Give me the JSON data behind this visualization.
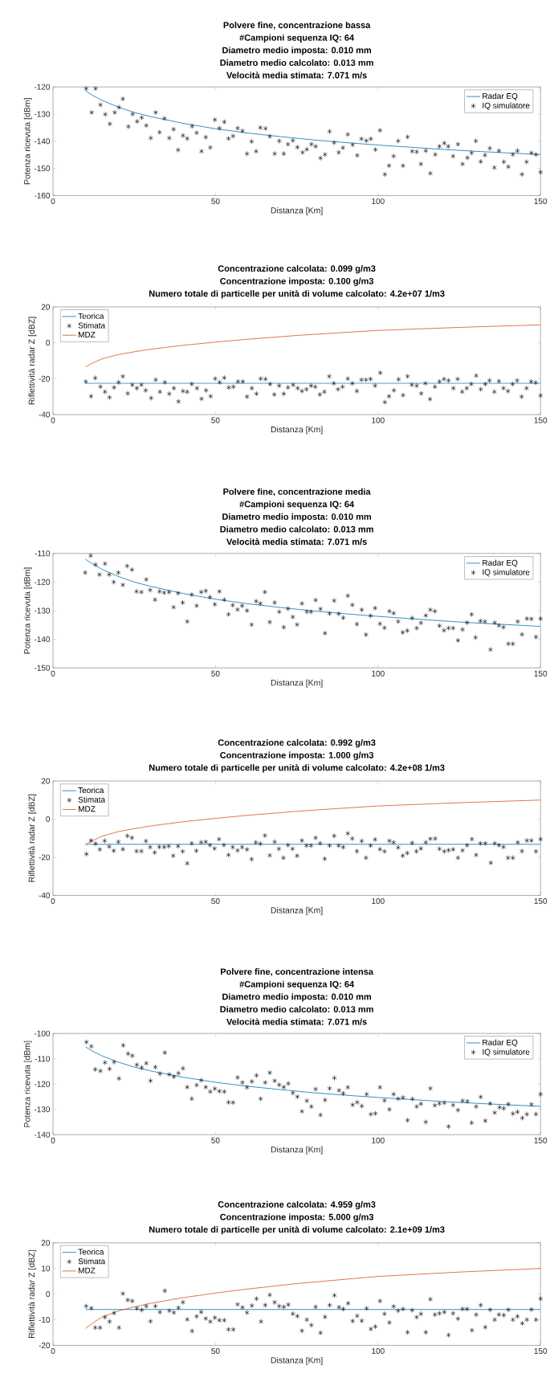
{
  "chart_data": [
    {
      "type": "line",
      "title": [
        "Polvere fine, concentrazione bassa",
        "#Campioni sequenza IQ: 64",
        "Diametro medio imposta: 0.010 mm",
        "Diametro medio calcolato: 0.013 mm",
        "Velocità media stimata: 7.071 m/s"
      ],
      "xlabel": "Distanza [Km]",
      "ylabel": "Potenza ricevuta [dBm]",
      "xlim": [
        0,
        150
      ],
      "xticks": [
        0,
        50,
        100,
        150
      ],
      "ylim": [
        -160,
        -120
      ],
      "yticks": [
        -160,
        -150,
        -140,
        -130,
        -120
      ],
      "legend": "top right",
      "series": [
        {
          "name": "Radar EQ",
          "color": "#0072bd",
          "x": [
            10,
            12,
            15,
            20,
            25,
            30,
            40,
            50,
            60,
            70,
            80,
            90,
            100,
            110,
            120,
            130,
            140,
            150
          ],
          "values": [
            -121.4,
            -123.0,
            -124.9,
            -127.4,
            -129.4,
            -130.9,
            -133.4,
            -135.4,
            -137.0,
            -138.3,
            -139.5,
            -140.5,
            -141.4,
            -142.2,
            -143.0,
            -143.7,
            -144.3,
            -144.9
          ]
        },
        {
          "name": "IQ simulatore",
          "type": "scatter",
          "marker": "cross",
          "color": "#000000",
          "x": [
            10.2,
            11.9,
            13.1,
            14.6,
            16.1,
            17.5,
            19,
            20.3,
            21.5,
            23.2,
            24.5,
            25.9,
            27.3,
            28.7,
            30.1,
            31.6,
            32.8,
            34.3,
            35.8,
            37.1,
            38.5,
            40,
            41.3,
            42.8,
            44.2,
            45.7,
            47,
            48.4,
            49.8,
            51.2,
            52.7,
            54,
            55.4,
            56.8,
            58.3,
            59.7,
            61.1,
            62.5,
            63.8,
            65.4,
            66.7,
            68.2,
            69.6,
            71,
            72.3,
            73.8,
            75.2,
            76.8,
            78.1,
            79.5,
            80.8,
            82.3,
            83.7,
            85.1,
            86.5,
            87.9,
            89.2,
            90.7,
            92.2,
            93.6,
            94.9,
            96.4,
            97.8,
            99.2,
            100.6,
            102.1,
            103.4,
            104.8,
            106.2,
            107.7,
            109.1,
            110.5,
            111.9,
            113.2,
            114.7,
            116.1,
            117.6,
            118.9,
            120.4,
            121.6,
            123.1,
            124.6,
            126,
            127.5,
            128.8,
            130.1,
            131.6,
            132.9,
            134.4,
            135.8,
            137.2,
            138.7,
            140.1,
            141.5,
            142.9,
            144.3,
            145.7,
            147.2,
            148.6,
            150
          ],
          "values": [
            -120.6,
            -129.4,
            -120.6,
            -126.6,
            -130.1,
            -133.6,
            -129.4,
            -127.5,
            -124.4,
            -134.6,
            -130,
            -132.7,
            -131.3,
            -134.2,
            -138.8,
            -129.4,
            -136.7,
            -131.6,
            -138.8,
            -135.6,
            -143.2,
            -137.9,
            -139,
            -134.5,
            -136.9,
            -143.7,
            -138.5,
            -142.3,
            -132.1,
            -135.2,
            -132.9,
            -139,
            -138.1,
            -135.2,
            -136.2,
            -144.6,
            -140.1,
            -143.7,
            -135,
            -135.3,
            -138.2,
            -144.6,
            -139.9,
            -144.6,
            -141.1,
            -139.7,
            -142.2,
            -144.1,
            -143,
            -141.1,
            -141.9,
            -146.2,
            -144.9,
            -136.4,
            -140.5,
            -144.1,
            -142.4,
            -137.5,
            -141.3,
            -145.2,
            -139.1,
            -139.8,
            -139.1,
            -143.1,
            -136,
            -152.2,
            -149,
            -145.5,
            -139.9,
            -149,
            -138.4,
            -143.7,
            -143.9,
            -148.4,
            -143.5,
            -151.8,
            -144.9,
            -141.9,
            -140.7,
            -141.9,
            -145.5,
            -141.1,
            -148.4,
            -146.1,
            -144.3,
            -139.9,
            -147.5,
            -145.1,
            -142.6,
            -149.7,
            -143.5,
            -147.6,
            -149.4,
            -144.9,
            -143.5,
            -152.2,
            -147.6,
            -144.3,
            -144.9,
            -151.4
          ]
        }
      ]
    },
    {
      "type": "line",
      "title": [
        "Concentrazione calcolata: 0.099 g/m3",
        "Concentrazione imposta: 0.100 g/m3",
        "Numero totale di particelle per unità di volume calcolato: 4.2e+07 1/m3"
      ],
      "xlabel": "Distanza [Km]",
      "ylabel": "Riflettività radar Z [dBZ]",
      "xlim": [
        0,
        150
      ],
      "xticks": [
        0,
        50,
        100,
        150
      ],
      "ylim": [
        -40,
        20
      ],
      "yticks": [
        -40,
        -20,
        0,
        20
      ],
      "legend": "top left",
      "series": [
        {
          "name": "Teorica",
          "color": "#0072bd",
          "x": [
            10,
            150
          ],
          "values": [
            -22.6,
            -22.6
          ]
        },
        {
          "name": "Stimata",
          "type": "scatter",
          "marker": "cross",
          "color": "#000000",
          "x": [
            10.1,
            11.7,
            13,
            14.6,
            16,
            17.4,
            18.8,
            20.2,
            21.5,
            23,
            24.4,
            25.8,
            27.2,
            28.5,
            30.2,
            31.6,
            32.9,
            34.4,
            35.8,
            37.2,
            38.6,
            40,
            41.3,
            42.7,
            44.3,
            45.7,
            47.1,
            48.5,
            49.9,
            51.3,
            52.7,
            54.1,
            55.5,
            56.9,
            58.4,
            59.7,
            61.2,
            62.6,
            63.9,
            65.4,
            66.8,
            68.1,
            69.6,
            71,
            72.3,
            73.9,
            75.3,
            76.6,
            78,
            79.4,
            80.7,
            82.1,
            83.5,
            85,
            86.4,
            87.7,
            89.1,
            90.7,
            92.1,
            93.5,
            94.9,
            96.3,
            97.7,
            99.1,
            100.7,
            102.1,
            103.4,
            104.9,
            106.3,
            107.7,
            109.1,
            110.4,
            111.9,
            113.3,
            114.6,
            116,
            117.5,
            118.9,
            120.3,
            121.7,
            123.2,
            124.5,
            125.9,
            127.3,
            128.7,
            130.2,
            131.6,
            133,
            134.3,
            135.8,
            137.2,
            138.6,
            140,
            141.4,
            142.8,
            144.2,
            145.7,
            147.1,
            148.5,
            150
          ],
          "values": [
            -21.6,
            -29.8,
            -19.6,
            -24.5,
            -27.3,
            -30.4,
            -24.9,
            -22,
            -18.7,
            -28.2,
            -23.4,
            -25.3,
            -23.4,
            -26.5,
            -30.8,
            -20.6,
            -27.3,
            -22,
            -28.4,
            -25.3,
            -32.7,
            -26.9,
            -27.3,
            -23,
            -25.3,
            -31.2,
            -26.5,
            -29.8,
            -20,
            -22,
            -19.5,
            -24.9,
            -24.5,
            -21.6,
            -21.6,
            -30,
            -25.3,
            -28.4,
            -20,
            -20.2,
            -23,
            -28.8,
            -23.9,
            -28.4,
            -24.9,
            -23.4,
            -25.3,
            -26.9,
            -25.9,
            -23.9,
            -24.5,
            -28.8,
            -27.3,
            -18.7,
            -22.6,
            -25.9,
            -24.5,
            -20,
            -22.6,
            -26.9,
            -20.6,
            -20.6,
            -20.2,
            -23.9,
            -16.7,
            -33.1,
            -29.8,
            -26.5,
            -20.4,
            -29.2,
            -18.7,
            -23.4,
            -23.9,
            -28.2,
            -22.6,
            -31.4,
            -24.5,
            -21.6,
            -20.2,
            -21,
            -25.3,
            -20.2,
            -27.3,
            -25.3,
            -23,
            -18.3,
            -25.9,
            -23,
            -21,
            -27.3,
            -21.4,
            -25.3,
            -26.9,
            -23,
            -21,
            -30,
            -25.3,
            -21.6,
            -22.2,
            -29.4
          ]
        },
        {
          "name": "MDZ",
          "color": "#d95319",
          "x": [
            10,
            12,
            15,
            20,
            25,
            30,
            40,
            50,
            60,
            75,
            90,
            100,
            125,
            150
          ],
          "values": [
            -13.4,
            -11.5,
            -9.0,
            -6.6,
            -5.0,
            -3.6,
            -1.4,
            0.4,
            2.0,
            4.1,
            5.8,
            6.9,
            8.6,
            10.0
          ]
        }
      ]
    },
    {
      "type": "line",
      "title": [
        "Polvere fine, concentrazione media",
        "#Campioni sequenza IQ: 64",
        "Diametro medio imposta: 0.010 mm",
        "Diametro medio calcolato: 0.013 mm",
        "Velocità media stimata: 7.071 m/s"
      ],
      "xlabel": "Distanza [Km]",
      "ylabel": "Potenza ricevuta [dBm]",
      "xlim": [
        0,
        150
      ],
      "xticks": [
        0,
        50,
        100,
        150
      ],
      "ylim": [
        -150,
        -110
      ],
      "yticks": [
        -150,
        -140,
        -130,
        -120,
        -110
      ],
      "legend": "top right",
      "series": [
        {
          "name": "Radar EQ",
          "color": "#0072bd",
          "x": [
            10,
            12,
            15,
            20,
            25,
            30,
            40,
            50,
            60,
            70,
            80,
            90,
            100,
            110,
            120,
            130,
            140,
            150
          ],
          "values": [
            -112.0,
            -113.6,
            -115.5,
            -118.0,
            -120.0,
            -121.5,
            -124.0,
            -126.0,
            -127.6,
            -128.9,
            -130.1,
            -131.1,
            -132.0,
            -132.8,
            -133.6,
            -134.3,
            -134.9,
            -135.5
          ]
        },
        {
          "name": "IQ simulatore",
          "type": "scatter",
          "marker": "cross",
          "color": "#000000",
          "x": [
            9.9,
            11.6,
            13.1,
            14.3,
            16,
            17.3,
            18.7,
            20.1,
            21.5,
            22.8,
            24.3,
            25.7,
            27.2,
            28.7,
            29.9,
            31.4,
            32.8,
            34.2,
            35.7,
            37.1,
            38.5,
            39.9,
            41.3,
            42.7,
            44.2,
            45.6,
            47,
            48.3,
            49.8,
            51.2,
            52.7,
            54,
            55.3,
            56.8,
            58.2,
            59.7,
            61.1,
            62.5,
            63.8,
            65.2,
            66.7,
            68.2,
            69.6,
            71,
            72.3,
            73.8,
            75.1,
            76.6,
            78.1,
            79.4,
            80.8,
            82.3,
            83.7,
            85.1,
            86.5,
            87.9,
            89.3,
            90.7,
            92.1,
            93.5,
            95,
            96.3,
            97.7,
            99.1,
            100.6,
            102,
            103.5,
            104.8,
            106.2,
            107.6,
            109,
            110.5,
            111.9,
            113.2,
            114.7,
            116.1,
            117.5,
            118.9,
            120.3,
            121.7,
            123.1,
            124.6,
            126,
            127.4,
            128.8,
            130,
            131.5,
            132.9,
            134.6,
            135.9,
            137.2,
            138.6,
            140.1,
            141.5,
            143,
            144.3,
            145.8,
            147.2,
            148.6,
            150
          ],
          "values": [
            -116.7,
            -110.8,
            -113.9,
            -117.4,
            -113.6,
            -117.4,
            -120,
            -116.7,
            -121,
            -114.4,
            -115.7,
            -123.3,
            -123.5,
            -119.1,
            -122.8,
            -126.2,
            -123.3,
            -123.7,
            -123.5,
            -128.8,
            -123.9,
            -127.2,
            -133.8,
            -124.4,
            -128.3,
            -123.5,
            -123.1,
            -125.3,
            -127.8,
            -123.3,
            -126.2,
            -131.3,
            -128.1,
            -129.6,
            -128.3,
            -130,
            -134.9,
            -126.7,
            -127.5,
            -123.5,
            -134,
            -127.2,
            -130.4,
            -135.8,
            -129.3,
            -132.2,
            -134.9,
            -127.5,
            -130.4,
            -130.4,
            -126.3,
            -129.4,
            -137.9,
            -131,
            -126.5,
            -131.1,
            -132.5,
            -124.8,
            -128,
            -134.7,
            -129.7,
            -138.4,
            -131.8,
            -129.1,
            -134.6,
            -136,
            -130.2,
            -130.9,
            -133.8,
            -137.6,
            -137,
            -132.6,
            -136.1,
            -134.3,
            -131.7,
            -129.7,
            -130.2,
            -135.3,
            -136.9,
            -136.1,
            -136.1,
            -140.4,
            -136.6,
            -134.2,
            -131.3,
            -139.4,
            -133.6,
            -133.8,
            -143.6,
            -134.2,
            -135.2,
            -135.8,
            -141.6,
            -141.6,
            -133.8,
            -138.3,
            -132.8,
            -132.9,
            -139.2,
            -132.8
          ]
        }
      ]
    },
    {
      "type": "line",
      "title": [
        "Concentrazione calcolata: 0.992 g/m3",
        "Concentrazione imposta: 1.000 g/m3",
        "Numero totale di particelle per unità di volume calcolato: 4.2e+08 1/m3"
      ],
      "xlabel": "Distanza [Km]",
      "ylabel": "Riflettività radar Z [dBZ]",
      "xlim": [
        0,
        150
      ],
      "xticks": [
        0,
        50,
        100,
        150
      ],
      "ylim": [
        -40,
        20
      ],
      "yticks": [
        -40,
        -20,
        0,
        20
      ],
      "legend": "top left",
      "series": [
        {
          "name": "Teorica",
          "color": "#0072bd",
          "x": [
            10,
            150
          ],
          "values": [
            -13.2,
            -13.2
          ]
        },
        {
          "name": "Stimata",
          "type": "scatter",
          "marker": "cross",
          "color": "#000000",
          "x": [
            10.3,
            11.7,
            13.1,
            14.4,
            15.9,
            17.3,
            18.7,
            20.1,
            21.5,
            22.9,
            24.3,
            25.7,
            27.2,
            28.6,
            29.9,
            31.3,
            32.7,
            34.2,
            35.6,
            37,
            38.5,
            39.9,
            41.3,
            42.7,
            44.1,
            45.6,
            47,
            48.3,
            49.7,
            51.1,
            52.6,
            54,
            55.3,
            56.8,
            58.2,
            59.7,
            61.1,
            62.4,
            63.8,
            65.2,
            66.7,
            68.2,
            69.5,
            70.9,
            72.3,
            73.7,
            75.1,
            76.6,
            78,
            79.4,
            80.8,
            82.2,
            83.6,
            85.1,
            86.5,
            87.9,
            89.3,
            90.7,
            92.1,
            93.5,
            95,
            96.3,
            97.7,
            99.1,
            100.6,
            102,
            103.5,
            104.8,
            106.2,
            107.6,
            109,
            110.5,
            111.8,
            113.2,
            114.7,
            116.1,
            117.6,
            118.9,
            120.4,
            121.7,
            123.1,
            124.6,
            126,
            127.4,
            128.9,
            130.2,
            131.5,
            133,
            134.7,
            135.9,
            137.2,
            138.6,
            140,
            141.5,
            143,
            144.3,
            145.8,
            147.2,
            148.6,
            150
          ],
          "values": [
            -18.3,
            -11.2,
            -12.9,
            -15.9,
            -11.4,
            -14.4,
            -16.6,
            -11.9,
            -15.8,
            -8.8,
            -9.8,
            -16.8,
            -16.8,
            -11.5,
            -14.7,
            -17.5,
            -14.6,
            -14.6,
            -14.2,
            -19.2,
            -14.2,
            -16.9,
            -23.2,
            -12.7,
            -16.6,
            -12.2,
            -11.9,
            -13.6,
            -15.4,
            -10.5,
            -13.6,
            -18.8,
            -14.7,
            -16.4,
            -14.7,
            -15.9,
            -21,
            -12.2,
            -12.9,
            -8.6,
            -19,
            -11.9,
            -15.6,
            -20.3,
            -13.6,
            -15.6,
            -19.2,
            -11.2,
            -13.9,
            -13.9,
            -9.8,
            -12.7,
            -20.8,
            -13.9,
            -8.8,
            -13.9,
            -14.7,
            -7.5,
            -10.2,
            -16.8,
            -11.5,
            -20.3,
            -13.9,
            -10.7,
            -15.8,
            -16.9,
            -11.4,
            -12.2,
            -14.9,
            -19.2,
            -17.8,
            -12.5,
            -16.9,
            -15.4,
            -12.2,
            -10.3,
            -10.2,
            -15.6,
            -16.9,
            -16.3,
            -15.9,
            -20.3,
            -16.4,
            -13.7,
            -10.5,
            -18.8,
            -12.7,
            -12.7,
            -22.9,
            -12.7,
            -13.7,
            -14.6,
            -20.3,
            -20.3,
            -12.2,
            -16.8,
            -11.2,
            -11.2,
            -16.9,
            -10.5
          ]
        },
        {
          "name": "MDZ",
          "color": "#d95319",
          "x": [
            10,
            12,
            15,
            20,
            25,
            30,
            40,
            50,
            60,
            75,
            90,
            100,
            125,
            150
          ],
          "values": [
            -13.4,
            -11.5,
            -9.0,
            -6.6,
            -5.0,
            -3.6,
            -1.4,
            0.4,
            2.0,
            4.1,
            5.8,
            6.9,
            8.6,
            10.0
          ]
        }
      ]
    },
    {
      "type": "line",
      "title": [
        "Polvere fine, concentrazione intensa",
        "#Campioni sequenza IQ: 64",
        "Diametro medio imposta: 0.010 mm",
        "Diametro medio calcolato: 0.013 mm",
        "Velocità media stimata: 7.071 m/s"
      ],
      "xlabel": "Distanza [Km]",
      "ylabel": "Potenza ricevuta [dBm]",
      "xlim": [
        0,
        150
      ],
      "xticks": [
        0,
        50,
        100,
        150
      ],
      "ylim": [
        -140,
        -100
      ],
      "yticks": [
        -140,
        -130,
        -120,
        -110,
        -100
      ],
      "legend": "top right",
      "series": [
        {
          "name": "Radar EQ",
          "color": "#0072bd",
          "x": [
            10,
            12,
            15,
            20,
            25,
            30,
            40,
            50,
            60,
            70,
            80,
            90,
            100,
            110,
            120,
            130,
            140,
            150
          ],
          "values": [
            -105.3,
            -106.9,
            -108.8,
            -111.3,
            -113.3,
            -114.8,
            -117.3,
            -119.3,
            -120.9,
            -122.2,
            -123.4,
            -124.4,
            -125.3,
            -126.1,
            -126.9,
            -127.6,
            -128.2,
            -128.8
          ]
        },
        {
          "name": "IQ simulatore",
          "type": "scatter",
          "marker": "cross",
          "color": "#000000",
          "x": [
            10.3,
            11.8,
            13,
            14.6,
            16,
            17.4,
            18.8,
            20.3,
            21.6,
            23.1,
            24.4,
            25.8,
            27.3,
            28.7,
            30,
            31.5,
            32.9,
            34.4,
            35.8,
            37.2,
            38.6,
            40,
            41.3,
            42.7,
            44.2,
            45.6,
            47,
            48.4,
            49.8,
            51.2,
            52.7,
            54,
            55.4,
            56.8,
            58.3,
            59.7,
            61.2,
            62.6,
            63.9,
            65.3,
            66.7,
            68.2,
            69.6,
            71,
            72.4,
            73.8,
            75.2,
            76.6,
            78.1,
            79.5,
            80.8,
            82.3,
            83.7,
            85.1,
            86.6,
            88,
            89.3,
            90.7,
            92.2,
            93.6,
            95,
            96.5,
            97.8,
            99.2,
            100.6,
            102,
            103.5,
            104.8,
            106.2,
            107.7,
            109.1,
            110.6,
            111.9,
            113.2,
            114.7,
            116.1,
            117.5,
            118.9,
            120.4,
            121.7,
            123.1,
            124.6,
            126,
            127.5,
            128.8,
            130.2,
            131.6,
            133,
            134.5,
            135.9,
            137.4,
            138.7,
            140.1,
            141.5,
            142.9,
            144.4,
            145.8,
            147.2,
            148.6,
            150
          ],
          "values": [
            -103.4,
            -105.1,
            -114.2,
            -114.8,
            -111.5,
            -114,
            -111.3,
            -117.8,
            -104.7,
            -108,
            -108.8,
            -112.4,
            -113.5,
            -111.8,
            -118.7,
            -113.3,
            -115.9,
            -107.6,
            -116.2,
            -117.1,
            -115.7,
            -113.8,
            -121.2,
            -125.8,
            -120.4,
            -118.5,
            -121.2,
            -123,
            -121.8,
            -122.8,
            -123,
            -127.2,
            -127.3,
            -117.4,
            -119.4,
            -121.3,
            -119,
            -116.6,
            -125.8,
            -119.4,
            -115.5,
            -118.7,
            -120.3,
            -121.2,
            -119.8,
            -123.5,
            -125,
            -130.8,
            -126.6,
            -128.9,
            -122,
            -132.2,
            -126.3,
            -121.7,
            -117.6,
            -122.5,
            -123.7,
            -121.3,
            -128.2,
            -127.2,
            -128.7,
            -124,
            -131.9,
            -131.6,
            -121.3,
            -126.5,
            -130,
            -124,
            -125.8,
            -125.3,
            -134.3,
            -125.9,
            -128.9,
            -127.8,
            -135,
            -121.7,
            -128.4,
            -127.7,
            -127.4,
            -136.8,
            -128.3,
            -130.3,
            -126.6,
            -126.8,
            -135.3,
            -128.9,
            -125.1,
            -134.5,
            -127.7,
            -131.3,
            -129.2,
            -129.6,
            -127.9,
            -131.7,
            -131,
            -133.4,
            -131.9,
            -128,
            -131.9,
            -124
          ]
        }
      ]
    },
    {
      "type": "line",
      "title": [
        "Concentrazione calcolata: 4.959 g/m3",
        "Concentrazione imposta: 5.000 g/m3",
        "Numero totale di particelle per unità di volume calcolato: 2.1e+09 1/m3"
      ],
      "xlabel": "Distanza [Km]",
      "ylabel": "Riflettività radar Z [dBZ]",
      "xlim": [
        0,
        150
      ],
      "xticks": [
        0,
        50,
        100,
        150
      ],
      "ylim": [
        -20,
        20
      ],
      "yticks": [
        -20,
        -10,
        0,
        10,
        20
      ],
      "legend": "top left",
      "series": [
        {
          "name": "Teorica",
          "color": "#0072bd",
          "x": [
            10,
            150
          ],
          "values": [
            -6.0,
            -6.0
          ]
        },
        {
          "name": "Stimata",
          "type": "scatter",
          "marker": "cross",
          "color": "#000000",
          "x": [
            10.2,
            11.8,
            13,
            14.5,
            16,
            17.4,
            18.8,
            20.3,
            21.5,
            23,
            24.4,
            25.8,
            27.3,
            28.7,
            30,
            31.5,
            32.9,
            34.4,
            35.8,
            37.2,
            38.6,
            40,
            41.3,
            42.8,
            44.2,
            45.6,
            47,
            48.4,
            49.8,
            51.2,
            52.7,
            54,
            55.5,
            56.8,
            58.3,
            59.7,
            61.2,
            62.6,
            64,
            65.3,
            66.7,
            68.2,
            69.6,
            71,
            72.4,
            73.8,
            75.2,
            76.6,
            78.1,
            79.5,
            80.8,
            82.3,
            83.7,
            85.1,
            86.6,
            88,
            89.3,
            90.8,
            92.2,
            93.6,
            95,
            96.5,
            97.8,
            99.2,
            100.6,
            102,
            103.5,
            104.8,
            106.2,
            107.7,
            109.1,
            110.5,
            111.9,
            113.2,
            114.7,
            116.1,
            117.5,
            118.9,
            120.4,
            121.7,
            123.1,
            124.6,
            126,
            127.4,
            128.9,
            130.2,
            131.6,
            133,
            134.5,
            135.9,
            137.2,
            138.7,
            140.1,
            141.5,
            142.9,
            144.4,
            145.8,
            147.2,
            148.6,
            150
          ],
          "values": [
            -4.7,
            -5.5,
            -13.1,
            -13.1,
            -9,
            -10.7,
            -7.4,
            -13.1,
            0.2,
            -2.3,
            -2.7,
            -5.6,
            -6.2,
            -4.7,
            -10.6,
            -4.7,
            -7,
            1.3,
            -6.5,
            -7.2,
            -5.3,
            -3.2,
            -9.9,
            -14.4,
            -8.7,
            -7,
            -9.5,
            -10.7,
            -9.2,
            -10.2,
            -10.2,
            -13.8,
            -13.8,
            -4,
            -5.2,
            -7.2,
            -4.5,
            -1.8,
            -10.7,
            -4.3,
            -0.3,
            -3.2,
            -4.7,
            -5,
            -4.1,
            -7.7,
            -8.6,
            -14.3,
            -10,
            -12.1,
            -5,
            -15.1,
            -8.9,
            -4.3,
            -0.5,
            -5.1,
            -5.8,
            -3.6,
            -10.5,
            -8.5,
            -10.4,
            -5.6,
            -13.6,
            -12.7,
            -2.7,
            -7.7,
            -11.1,
            -4.8,
            -6.5,
            -5.8,
            -14.9,
            -6.3,
            -9,
            -7.7,
            -14.9,
            -2,
            -8,
            -7.5,
            -7,
            -16,
            -7.5,
            -9.6,
            -5.8,
            -5.8,
            -14.1,
            -8,
            -4.3,
            -12.9,
            -6.1,
            -10,
            -8,
            -8.2,
            -6.1,
            -10,
            -8.7,
            -11.4,
            -10,
            -6,
            -10,
            -1.8
          ]
        },
        {
          "name": "MDZ",
          "color": "#d95319",
          "x": [
            10,
            12,
            15,
            20,
            25,
            30,
            40,
            50,
            60,
            75,
            90,
            100,
            125,
            150
          ],
          "values": [
            -13.4,
            -11.5,
            -9.0,
            -6.6,
            -5.0,
            -3.6,
            -1.4,
            0.4,
            2.0,
            4.1,
            5.8,
            6.9,
            8.6,
            10.0
          ]
        }
      ]
    }
  ]
}
